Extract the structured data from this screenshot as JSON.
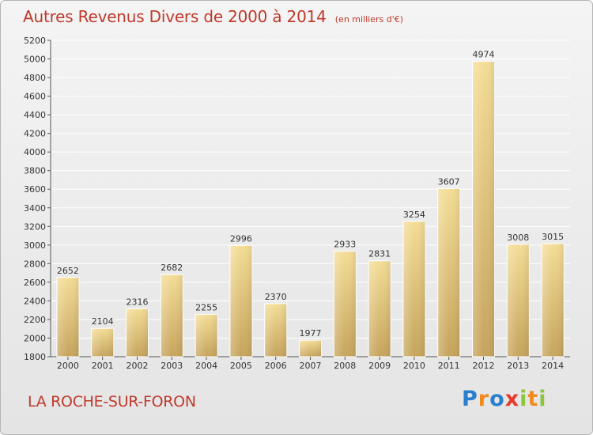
{
  "page": {
    "title": "Autres Revenus Divers de 2000 à 2014",
    "subtitle": "(en milliers d'€)",
    "location": "LA ROCHE-SUR-FORON",
    "logo": {
      "letters": [
        "P",
        "r",
        "o",
        "x",
        "i",
        "t",
        "i"
      ],
      "colors": [
        "#2a7fcf",
        "#f08a1c",
        "#2a7fcf",
        "#e8392a",
        "#8cc63f",
        "#f08a1c",
        "#8cc63f"
      ]
    }
  },
  "chart_data": {
    "type": "bar",
    "title": "Autres Revenus Divers de 2000 à 2014",
    "subtitle": "(en milliers d'€)",
    "categories": [
      "2000",
      "2001",
      "2002",
      "2003",
      "2004",
      "2005",
      "2006",
      "2007",
      "2008",
      "2009",
      "2010",
      "2011",
      "2012",
      "2013",
      "2014"
    ],
    "values": [
      2652,
      2104,
      2316,
      2682,
      2255,
      2996,
      2370,
      1977,
      2933,
      2831,
      3254,
      3607,
      4974,
      3008,
      3015
    ],
    "xlabel": "",
    "ylabel": "",
    "ylim": [
      1800,
      5200
    ],
    "yticks": [
      1800,
      2000,
      2200,
      2400,
      2600,
      2800,
      3000,
      3200,
      3400,
      3600,
      3800,
      4000,
      4200,
      4400,
      4600,
      4800,
      5000,
      5200
    ],
    "grid": true,
    "data_labels": true,
    "colors": {
      "bar_light": "#f4dd96",
      "bar_dark": "#c6a45c",
      "grid": "#ffffff",
      "text": "#333333"
    }
  }
}
